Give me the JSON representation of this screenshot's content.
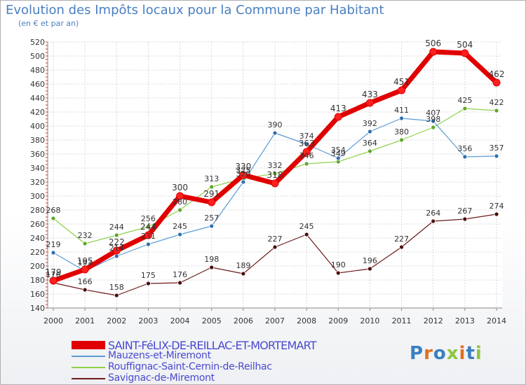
{
  "title": "Evolution des Impôts locaux pour la Commune par Habitant",
  "subtitle": "(en € et par an)",
  "logo": "Proxiti",
  "chart_data": {
    "type": "line",
    "title": "Evolution des Impôts locaux pour la Commune par Habitant",
    "ylabel": "(en € et par an)",
    "x": [
      "2000",
      "2001",
      "2002",
      "2003",
      "2004",
      "2005",
      "2006",
      "2007",
      "2008",
      "2009",
      "2010",
      "2011",
      "2012",
      "2013",
      "2014"
    ],
    "ylim": [
      140,
      520
    ],
    "yticks": [
      140,
      160,
      180,
      200,
      220,
      240,
      260,
      280,
      300,
      320,
      340,
      360,
      380,
      400,
      420,
      440,
      460,
      480,
      500,
      520
    ],
    "grid": true,
    "series": [
      {
        "name": "SAINT-FéLIX-DE-REILLAC-ET-MORTEMART",
        "color": "#e00000",
        "values": [
          179,
          195,
          222,
          244,
          300,
          291,
          330,
          318,
          363,
          413,
          433,
          451,
          506,
          504,
          462
        ]
      },
      {
        "name": "Mauzens-et-Miremont",
        "color": "#5b9bd5",
        "values": [
          219,
          193,
          214,
          231,
          245,
          257,
          320,
          390,
          374,
          354,
          392,
          411,
          407,
          356,
          357
        ]
      },
      {
        "name": "Rouffignac-Saint-Cernin-de-Reilhac",
        "color": "#8ed14b",
        "values": [
          268,
          232,
          244,
          256,
          280,
          313,
          325,
          332,
          346,
          349,
          364,
          380,
          398,
          425,
          422
        ]
      },
      {
        "name": "Savignac-de-Miremont",
        "color": "#6b1a1a",
        "values": [
          176,
          166,
          158,
          175,
          176,
          198,
          189,
          227,
          245,
          190,
          196,
          227,
          264,
          267,
          274
        ]
      }
    ]
  }
}
